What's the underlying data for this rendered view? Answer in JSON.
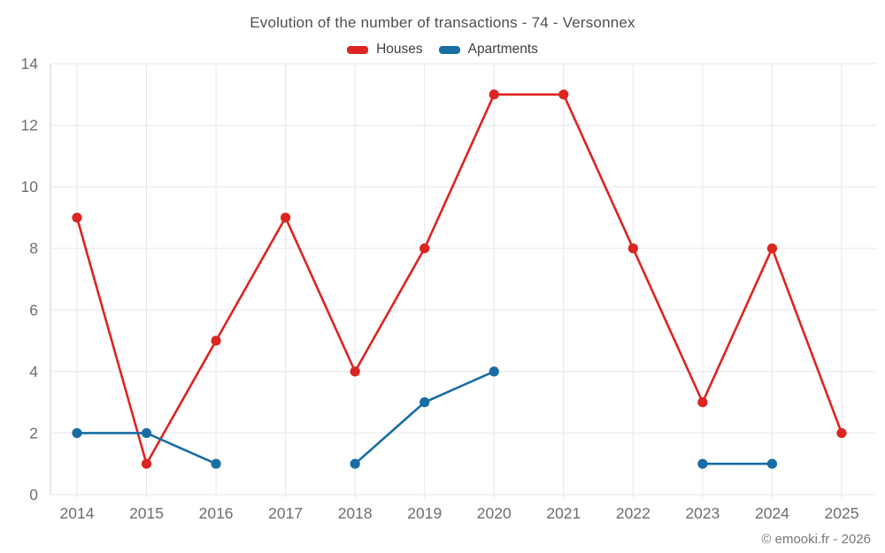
{
  "title": "Evolution of the number of transactions - 74 - Versonnex",
  "footer": "© emooki.fr - 2026",
  "colors": {
    "houses": "#dc2420",
    "apartments": "#176da4",
    "grid_line": "#e7e7e7",
    "axis_line": "#d9d9d9",
    "tick_label": "#6e6e6e"
  },
  "chart_data": {
    "type": "line",
    "title": "Evolution of the number of transactions - 74 - Versonnex",
    "categories": [
      "2014",
      "2015",
      "2016",
      "2017",
      "2018",
      "2019",
      "2020",
      "2021",
      "2022",
      "2023",
      "2024",
      "2025"
    ],
    "series": [
      {
        "name": "Houses",
        "color": "#dc2420",
        "values": [
          9,
          1,
          5,
          9,
          4,
          8,
          13,
          13,
          8,
          3,
          8,
          2
        ]
      },
      {
        "name": "Apartments",
        "color": "#176da4",
        "values": [
          2,
          2,
          1,
          null,
          1,
          3,
          4,
          null,
          null,
          1,
          1,
          null
        ]
      }
    ],
    "xlabel": "",
    "ylabel": "",
    "ylim": [
      0,
      14
    ],
    "yticks": [
      0,
      2,
      4,
      6,
      8,
      10,
      12,
      14
    ],
    "grid": true,
    "legend_position": "top"
  }
}
